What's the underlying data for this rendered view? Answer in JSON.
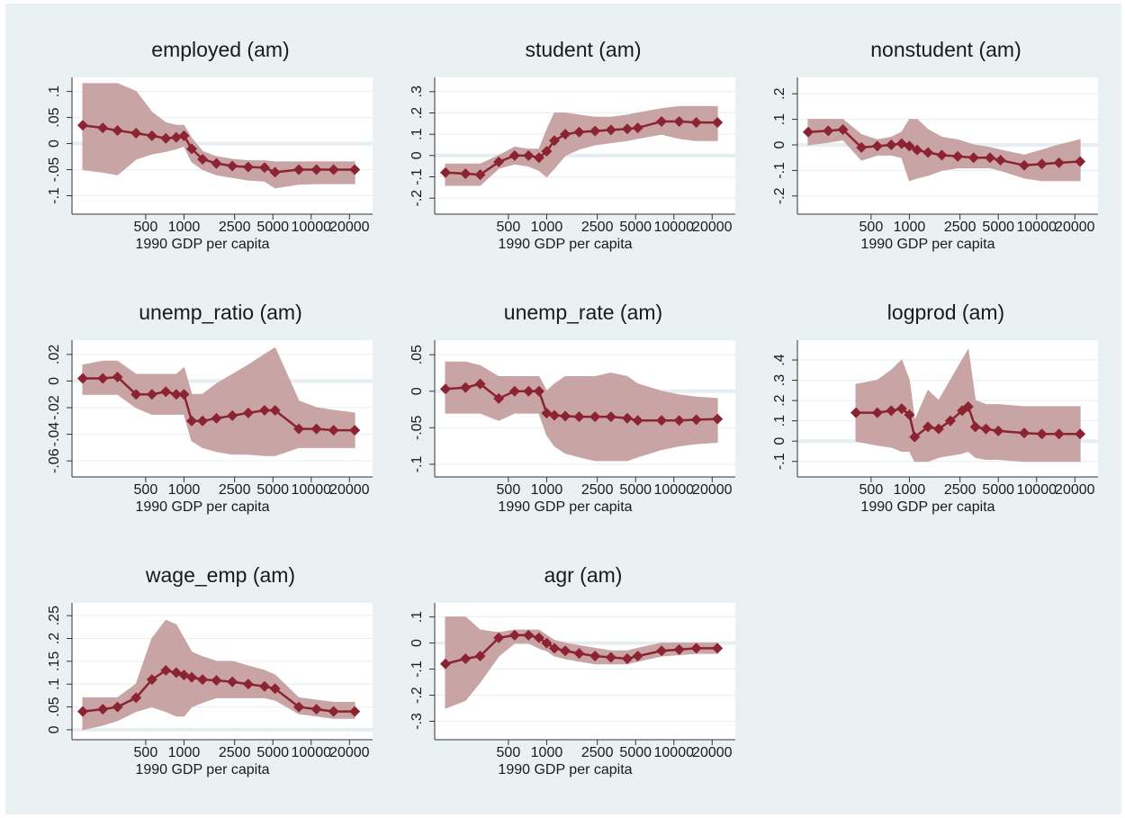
{
  "chart_data": [
    {
      "type": "line",
      "title": "employed (am)",
      "x_label": "1990 GDP per capita",
      "xscale": "log",
      "x": [
        160,
        230,
        300,
        420,
        560,
        720,
        870,
        1000,
        1150,
        1400,
        1800,
        2400,
        3200,
        4300,
        5200,
        8000,
        11000,
        15000,
        22000
      ],
      "xlim": [
        150,
        25000
      ],
      "xticks": [
        500,
        1000,
        2500,
        5000,
        10000,
        20000
      ],
      "ylim": [
        -0.125,
        0.12
      ],
      "yticks": [
        {
          "value": -0.1,
          "label": "-.1"
        },
        {
          "value": -0.05,
          "label": "-.05"
        },
        0,
        {
          "value": 0.05,
          "label": ".05"
        },
        {
          "value": 0.1,
          "label": ".1"
        }
      ],
      "grid": true,
      "band_color": "#c9a4a4",
      "series": [
        {
          "color": "#8b2332",
          "values": [
            0.035,
            0.03,
            0.025,
            0.02,
            0.015,
            0.01,
            0.012,
            0.015,
            -0.01,
            -0.03,
            -0.038,
            -0.043,
            -0.045,
            -0.046,
            -0.055,
            -0.05,
            -0.05,
            -0.05,
            -0.05
          ],
          "upper": [
            0.115,
            0.115,
            0.115,
            0.1,
            0.06,
            0.04,
            0.035,
            0.035,
            0.01,
            -0.015,
            -0.025,
            -0.03,
            -0.033,
            -0.033,
            -0.035,
            -0.035,
            -0.035,
            -0.035,
            -0.035
          ],
          "lower": [
            -0.05,
            -0.055,
            -0.06,
            -0.03,
            -0.02,
            -0.015,
            -0.01,
            -0.005,
            -0.035,
            -0.05,
            -0.06,
            -0.065,
            -0.07,
            -0.072,
            -0.085,
            -0.078,
            -0.077,
            -0.077,
            -0.077
          ]
        }
      ]
    },
    {
      "type": "line",
      "title": "student (am)",
      "x_label": "1990 GDP per capita",
      "xscale": "log",
      "x": [
        160,
        230,
        300,
        420,
        560,
        720,
        870,
        1000,
        1150,
        1400,
        1800,
        2400,
        3200,
        4300,
        5200,
        8000,
        11000,
        15000,
        22000
      ],
      "xlim": [
        150,
        25000
      ],
      "xticks": [
        500,
        1000,
        2500,
        5000,
        10000,
        20000
      ],
      "ylim": [
        -0.25,
        0.35
      ],
      "yticks": [
        {
          "value": -0.2,
          "label": "-.2"
        },
        {
          "value": -0.1,
          "label": "-.1"
        },
        0,
        {
          "value": 0.1,
          "label": ".1"
        },
        {
          "value": 0.2,
          "label": ".2"
        },
        {
          "value": 0.3,
          "label": ".3"
        }
      ],
      "grid": true,
      "band_color": "#c9a4a4",
      "series": [
        {
          "color": "#8b2332",
          "values": [
            -0.08,
            -0.085,
            -0.09,
            -0.03,
            0,
            0,
            -0.01,
            0.02,
            0.07,
            0.1,
            0.11,
            0.115,
            0.12,
            0.125,
            0.13,
            0.16,
            0.16,
            0.155,
            0.155
          ],
          "upper": [
            -0.04,
            -0.04,
            -0.04,
            0,
            0.04,
            0.03,
            0.03,
            0.12,
            0.2,
            0.2,
            0.19,
            0.18,
            0.18,
            0.19,
            0.2,
            0.22,
            0.23,
            0.23,
            0.23
          ],
          "lower": [
            -0.14,
            -0.14,
            -0.14,
            -0.06,
            -0.04,
            -0.05,
            -0.07,
            -0.1,
            -0.06,
            0,
            0.03,
            0.05,
            0.06,
            0.07,
            0.08,
            0.1,
            0.08,
            0.07,
            0.07
          ]
        }
      ]
    },
    {
      "type": "line",
      "title": "nonstudent (am)",
      "x_label": "1990 GDP per capita",
      "xscale": "log",
      "x": [
        160,
        230,
        300,
        420,
        560,
        720,
        870,
        1000,
        1150,
        1400,
        1800,
        2400,
        3200,
        4300,
        5200,
        8000,
        11000,
        15000,
        22000
      ],
      "xlim": [
        150,
        25000
      ],
      "xticks": [
        500,
        1000,
        2500,
        5000,
        10000,
        20000
      ],
      "ylim": [
        -0.25,
        0.25
      ],
      "yticks": [
        {
          "value": -0.2,
          "label": "-.2"
        },
        {
          "value": -0.1,
          "label": "-.1"
        },
        0,
        {
          "value": 0.1,
          "label": ".1"
        },
        {
          "value": 0.2,
          "label": ".2"
        }
      ],
      "grid": true,
      "band_color": "#c9a4a4",
      "series": [
        {
          "color": "#8b2332",
          "values": [
            0.05,
            0.055,
            0.06,
            -0.01,
            -0.005,
            0,
            0.005,
            -0.005,
            -0.02,
            -0.03,
            -0.04,
            -0.045,
            -0.05,
            -0.05,
            -0.06,
            -0.08,
            -0.075,
            -0.07,
            -0.065
          ],
          "upper": [
            0.1,
            0.1,
            0.1,
            0.04,
            0.02,
            0.03,
            0.05,
            0.1,
            0.1,
            0.06,
            0.03,
            0.02,
            0,
            -0.01,
            -0.02,
            -0.04,
            -0.02,
            0,
            0.02
          ],
          "lower": [
            0,
            0.01,
            0.02,
            -0.06,
            -0.04,
            -0.04,
            -0.05,
            -0.14,
            -0.13,
            -0.12,
            -0.1,
            -0.09,
            -0.09,
            -0.09,
            -0.1,
            -0.13,
            -0.14,
            -0.14,
            -0.14
          ]
        }
      ]
    },
    {
      "type": "line",
      "title": "unemp_ratio (am)",
      "x_label": "1990 GDP per capita",
      "xscale": "log",
      "x": [
        160,
        230,
        300,
        420,
        560,
        720,
        870,
        1000,
        1150,
        1400,
        1800,
        2400,
        3200,
        4300,
        5200,
        8000,
        11000,
        15000,
        22000
      ],
      "xlim": [
        150,
        25000
      ],
      "xticks": [
        500,
        1000,
        2500,
        5000,
        10000,
        20000
      ],
      "ylim": [
        -0.068,
        0.028
      ],
      "yticks": [
        {
          "value": -0.06,
          "label": "-.06"
        },
        {
          "value": -0.04,
          "label": "-.04"
        },
        {
          "value": -0.02,
          "label": "-.02"
        },
        0,
        {
          "value": 0.02,
          "label": ".02"
        }
      ],
      "grid": true,
      "band_color": "#c9a4a4",
      "series": [
        {
          "color": "#8b2332",
          "values": [
            0.002,
            0.002,
            0.003,
            -0.01,
            -0.01,
            -0.008,
            -0.01,
            -0.01,
            -0.03,
            -0.03,
            -0.028,
            -0.026,
            -0.024,
            -0.022,
            -0.022,
            -0.036,
            -0.036,
            -0.037,
            -0.037
          ],
          "upper": [
            0.012,
            0.015,
            0.015,
            0.005,
            0.005,
            0.005,
            0.005,
            0.01,
            -0.01,
            -0.01,
            -0.002,
            0.005,
            0.012,
            0.02,
            0.025,
            -0.015,
            -0.02,
            -0.022,
            -0.024
          ],
          "lower": [
            -0.01,
            -0.01,
            -0.01,
            -0.02,
            -0.025,
            -0.025,
            -0.025,
            -0.025,
            -0.045,
            -0.05,
            -0.053,
            -0.055,
            -0.055,
            -0.056,
            -0.056,
            -0.05,
            -0.05,
            -0.05,
            -0.05
          ]
        }
      ]
    },
    {
      "type": "line",
      "title": "unemp_rate (am)",
      "x_label": "1990 GDP per capita",
      "xscale": "log",
      "x": [
        160,
        230,
        300,
        420,
        560,
        720,
        870,
        1000,
        1150,
        1400,
        1800,
        2400,
        3200,
        4300,
        5200,
        8000,
        11000,
        15000,
        22000
      ],
      "xlim": [
        150,
        25000
      ],
      "xticks": [
        500,
        1000,
        2500,
        5000,
        10000,
        20000
      ],
      "ylim": [
        -0.11,
        0.065
      ],
      "yticks": [
        {
          "value": -0.1,
          "label": "-.1"
        },
        {
          "value": -0.05,
          "label": "-.05"
        },
        0,
        {
          "value": 0.05,
          "label": ".05"
        }
      ],
      "grid": true,
      "band_color": "#c9a4a4",
      "series": [
        {
          "color": "#8b2332",
          "values": [
            0.003,
            0.005,
            0.01,
            -0.01,
            0,
            0,
            0,
            -0.03,
            -0.033,
            -0.034,
            -0.035,
            -0.035,
            -0.035,
            -0.037,
            -0.04,
            -0.04,
            -0.04,
            -0.039,
            -0.038
          ],
          "upper": [
            0.04,
            0.04,
            0.035,
            0.02,
            0.02,
            0.02,
            0.02,
            0,
            0.01,
            0.02,
            0.02,
            0.02,
            0.025,
            0.02,
            0.01,
            0,
            -0.005,
            -0.008,
            -0.01
          ],
          "lower": [
            -0.03,
            -0.03,
            -0.03,
            -0.04,
            -0.03,
            -0.03,
            -0.03,
            -0.06,
            -0.075,
            -0.085,
            -0.09,
            -0.095,
            -0.095,
            -0.095,
            -0.09,
            -0.08,
            -0.075,
            -0.072,
            -0.07
          ]
        }
      ]
    },
    {
      "type": "line",
      "title": "logprod (am)",
      "x_label": "1990 GDP per capita",
      "xscale": "log",
      "x": [
        380,
        560,
        720,
        870,
        1000,
        1100,
        1400,
        1700,
        2100,
        2600,
        2900,
        3300,
        4000,
        5000,
        8000,
        11000,
        15000,
        22000
      ],
      "xlim": [
        150,
        25000
      ],
      "xticks": [
        500,
        1000,
        2500,
        5000,
        10000,
        20000
      ],
      "ylim": [
        -0.15,
        0.48
      ],
      "yticks": [
        {
          "value": -0.1,
          "label": "-.1"
        },
        0,
        {
          "value": 0.1,
          "label": ".1"
        },
        {
          "value": 0.2,
          "label": ".2"
        },
        {
          "value": 0.3,
          "label": ".3"
        },
        {
          "value": 0.4,
          "label": ".4"
        }
      ],
      "grid": true,
      "band_color": "#c9a4a4",
      "series": [
        {
          "color": "#8b2332",
          "values": [
            0.14,
            0.14,
            0.15,
            0.16,
            0.13,
            0.02,
            0.07,
            0.06,
            0.1,
            0.15,
            0.17,
            0.07,
            0.06,
            0.05,
            0.04,
            0.035,
            0.035,
            0.035
          ],
          "upper": [
            0.28,
            0.3,
            0.35,
            0.4,
            0.3,
            0.1,
            0.25,
            0.2,
            0.3,
            0.4,
            0.45,
            0.2,
            0.18,
            0.18,
            0.17,
            0.17,
            0.17,
            0.17
          ],
          "lower": [
            0,
            -0.02,
            -0.03,
            -0.05,
            -0.05,
            -0.1,
            -0.1,
            -0.08,
            -0.07,
            -0.06,
            -0.05,
            -0.08,
            -0.09,
            -0.09,
            -0.1,
            -0.1,
            -0.1,
            -0.1
          ]
        }
      ]
    },
    {
      "type": "line",
      "title": "wage_emp (am)",
      "x_label": "1990 GDP per capita",
      "xscale": "log",
      "x": [
        160,
        230,
        300,
        420,
        560,
        720,
        870,
        1000,
        1150,
        1400,
        1800,
        2400,
        3200,
        4300,
        5200,
        8000,
        11000,
        15000,
        22000
      ],
      "xlim": [
        150,
        25000
      ],
      "xticks": [
        500,
        1000,
        2500,
        5000,
        10000,
        20000
      ],
      "ylim": [
        -0.01,
        0.27
      ],
      "yticks": [
        0,
        {
          "value": 0.05,
          "label": ".05"
        },
        {
          "value": 0.1,
          "label": ".1"
        },
        {
          "value": 0.15,
          "label": ".15"
        },
        {
          "value": 0.2,
          "label": ".2"
        },
        {
          "value": 0.25,
          "label": ".25"
        }
      ],
      "grid": true,
      "band_color": "#c9a4a4",
      "series": [
        {
          "color": "#8b2332",
          "values": [
            0.04,
            0.045,
            0.05,
            0.07,
            0.11,
            0.13,
            0.125,
            0.12,
            0.115,
            0.11,
            0.108,
            0.105,
            0.1,
            0.095,
            0.09,
            0.05,
            0.045,
            0.04,
            0.04
          ],
          "upper": [
            0.07,
            0.07,
            0.07,
            0.1,
            0.2,
            0.24,
            0.23,
            0.2,
            0.17,
            0.16,
            0.15,
            0.15,
            0.14,
            0.13,
            0.12,
            0.07,
            0.065,
            0.06,
            0.06
          ],
          "lower": [
            0,
            0.01,
            0.02,
            0.04,
            0.05,
            0.04,
            0.03,
            0.03,
            0.05,
            0.06,
            0.07,
            0.07,
            0.07,
            0.07,
            0.065,
            0.035,
            0.03,
            0.025,
            0.025
          ]
        }
      ]
    },
    {
      "type": "line",
      "title": "agr (am)",
      "x_label": "1990 GDP per capita",
      "xscale": "log",
      "x": [
        160,
        230,
        300,
        420,
        560,
        720,
        870,
        1000,
        1150,
        1400,
        1800,
        2400,
        3200,
        4300,
        5200,
        8000,
        11000,
        15000,
        22000
      ],
      "xlim": [
        150,
        25000
      ],
      "xticks": [
        500,
        1000,
        2500,
        5000,
        10000,
        20000
      ],
      "ylim": [
        -0.35,
        0.14
      ],
      "yticks": [
        {
          "value": -0.3,
          "label": "-.3"
        },
        {
          "value": -0.2,
          "label": "-.2"
        },
        {
          "value": -0.1,
          "label": "-.1"
        },
        0,
        {
          "value": 0.1,
          "label": ".1"
        }
      ],
      "grid": true,
      "band_color": "#c9a4a4",
      "series": [
        {
          "color": "#8b2332",
          "values": [
            -0.08,
            -0.06,
            -0.05,
            0.02,
            0.03,
            0.03,
            0.02,
            0,
            -0.02,
            -0.03,
            -0.04,
            -0.05,
            -0.055,
            -0.06,
            -0.05,
            -0.03,
            -0.025,
            -0.02,
            -0.02
          ],
          "upper": [
            0.1,
            0.1,
            0.05,
            0.04,
            0.05,
            0.05,
            0.05,
            0.03,
            0.01,
            0,
            -0.01,
            -0.02,
            -0.03,
            -0.03,
            -0.02,
            0,
            0,
            0,
            0
          ],
          "lower": [
            -0.25,
            -0.22,
            -0.15,
            -0.05,
            0,
            0,
            -0.02,
            -0.03,
            -0.05,
            -0.06,
            -0.07,
            -0.08,
            -0.08,
            -0.08,
            -0.07,
            -0.05,
            -0.045,
            -0.04,
            -0.04
          ]
        }
      ]
    }
  ]
}
